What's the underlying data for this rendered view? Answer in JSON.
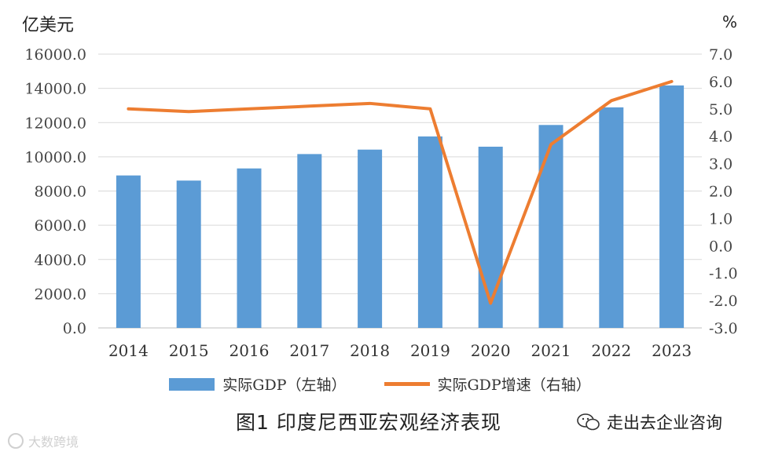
{
  "chart_data": {
    "type": "bar",
    "unit_left": "亿美元",
    "unit_right": "%",
    "categories": [
      "2014",
      "2015",
      "2016",
      "2017",
      "2018",
      "2019",
      "2020",
      "2021",
      "2022",
      "2023"
    ],
    "series": [
      {
        "name": "实际GDP（左轴）",
        "type": "bar",
        "axis": "left",
        "color": "#5B9BD5",
        "values": [
          8910,
          8610,
          9320,
          10160,
          10420,
          11190,
          10590,
          11860,
          12890,
          14170
        ]
      },
      {
        "name": "实际GDP增速（右轴）",
        "type": "line",
        "axis": "right",
        "color": "#ED7D31",
        "values": [
          5.0,
          4.9,
          5.0,
          5.1,
          5.2,
          5.0,
          -2.1,
          3.7,
          5.3,
          6.0
        ]
      }
    ],
    "y_left": {
      "min": 0,
      "max": 16000,
      "step": 2000,
      "tick_labels": [
        "0.0",
        "2000.0",
        "4000.0",
        "6000.0",
        "8000.0",
        "10000.0",
        "12000.0",
        "14000.0",
        "16000.0"
      ]
    },
    "y_right": {
      "min": -3,
      "max": 7,
      "step": 1,
      "tick_labels": [
        "-3.0",
        "-2.0",
        "-1.0",
        "0.0",
        "1.0",
        "2.0",
        "3.0",
        "4.0",
        "5.0",
        "6.0",
        "7.0"
      ]
    },
    "grid": true,
    "legend_placement": "bottom"
  },
  "caption": "图1  印度尼西亚宏观经济表现",
  "brand": "走出去企业咨询",
  "watermark": "大数跨境"
}
